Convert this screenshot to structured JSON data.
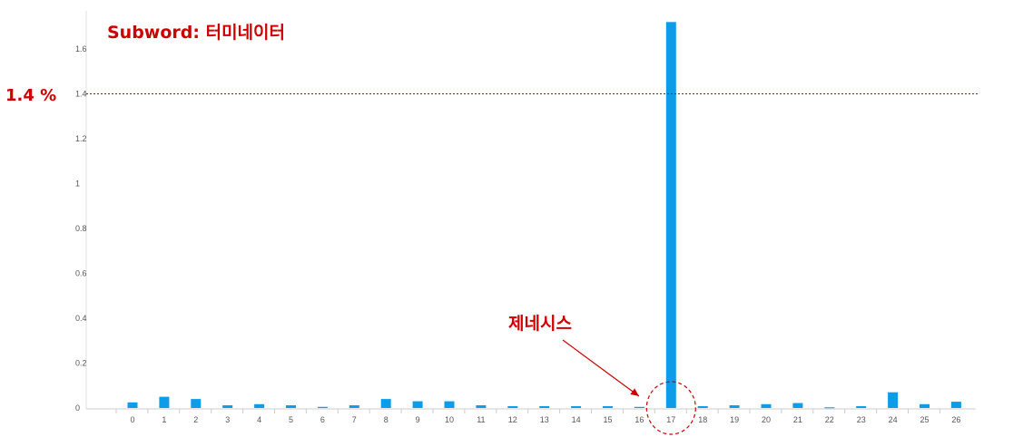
{
  "chart_data": {
    "type": "bar",
    "title": "Subword: 터미네이터",
    "categories": [
      "0",
      "1",
      "2",
      "3",
      "4",
      "5",
      "6",
      "7",
      "8",
      "9",
      "10",
      "11",
      "12",
      "13",
      "14",
      "15",
      "16",
      "17",
      "18",
      "19",
      "20",
      "21",
      "22",
      "23",
      "24",
      "25",
      "26"
    ],
    "values": [
      0.025,
      0.05,
      0.04,
      0.012,
      0.017,
      0.012,
      0.005,
      0.012,
      0.04,
      0.03,
      0.03,
      0.012,
      0.008,
      0.008,
      0.008,
      0.008,
      0.005,
      1.72,
      0.008,
      0.012,
      0.017,
      0.022,
      0.003,
      0.008,
      0.07,
      0.017,
      0.028
    ],
    "y_ticks": [
      "0",
      "0.2",
      "0.4",
      "0.6",
      "0.8",
      "1",
      "1.2",
      "1.4",
      "1.6"
    ],
    "ylim": [
      0,
      1.72
    ],
    "reference_line": {
      "value": 1.4,
      "label": "1.4 %"
    },
    "highlight": {
      "category": "17",
      "label": "제네시스"
    },
    "colors": {
      "bar": "#0d9de8",
      "accent": "#cc0000",
      "axis": "#cccccc"
    }
  }
}
